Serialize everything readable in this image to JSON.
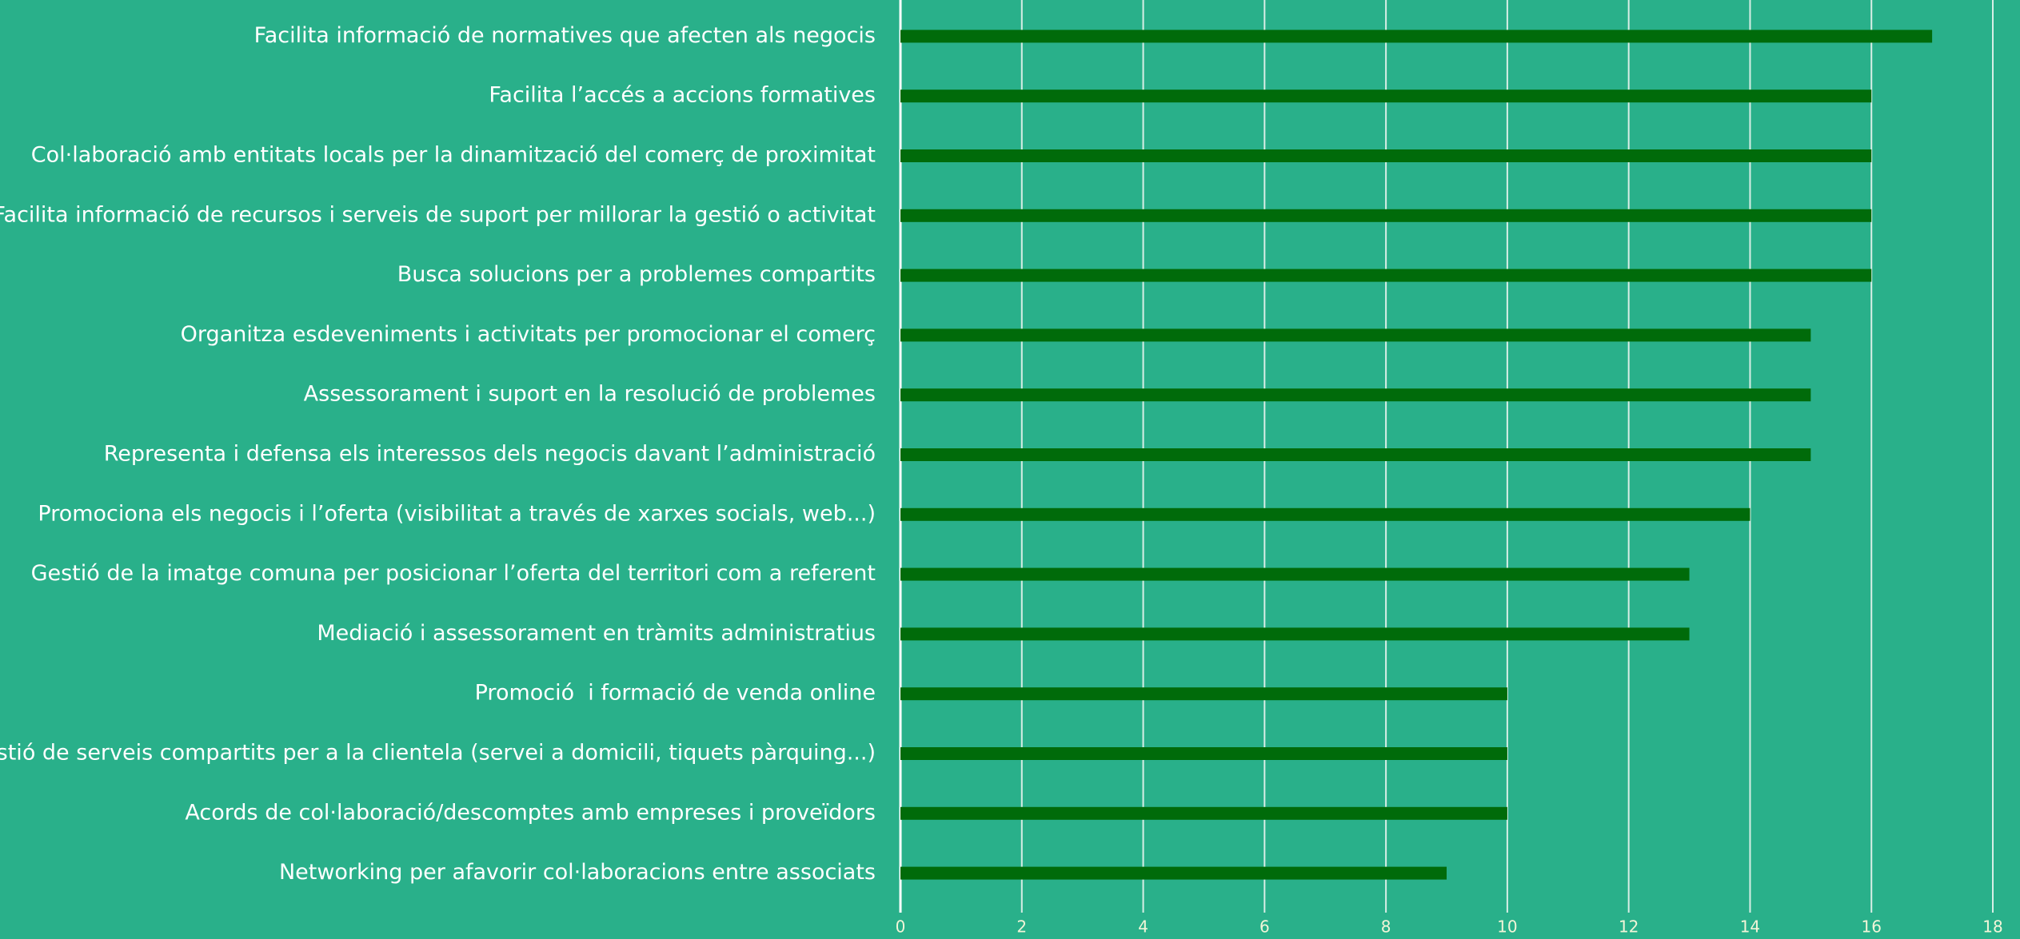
{
  "chart_data": {
    "type": "bar",
    "orientation": "horizontal",
    "categories": [
      "Facilita informació de normatives que afecten als negocis",
      "Facilita l’accés a accions formatives",
      "Col·laboració amb entitats locals per la dinamització del comerç de proximitat",
      "Facilita informació de recursos i serveis de suport per millorar la gestió o activitat",
      "Busca solucions per a problemes compartits",
      "Organitza esdeveniments i activitats per promocionar el comerç",
      "Assessorament i suport en la resolució de problemes",
      "Representa i defensa els interessos dels negocis davant l’administració",
      "Promociona els negocis i l’oferta (visibilitat a través de xarxes socials, web...)",
      "Gestió de la imatge comuna per posicionar l’oferta del territori com a referent",
      "Mediació i assessorament en tràmits administratius",
      "Promoció  i formació de venda online",
      "Gestió de serveis compartits per a la clientela (servei a domicili, tiquets pàrquing...)",
      "Acords de col·laboració/descomptes amb empreses i proveïdors",
      "Networking per afavorir col·laboracions entre associats"
    ],
    "values": [
      17,
      16,
      16,
      16,
      16,
      15,
      15,
      15,
      14,
      13,
      13,
      10,
      10,
      10,
      9
    ],
    "color": "#006b0a",
    "xlim": [
      0,
      18
    ],
    "xticks": [
      0,
      2,
      4,
      6,
      8,
      10,
      12,
      14,
      16,
      18
    ],
    "grid": true
  }
}
